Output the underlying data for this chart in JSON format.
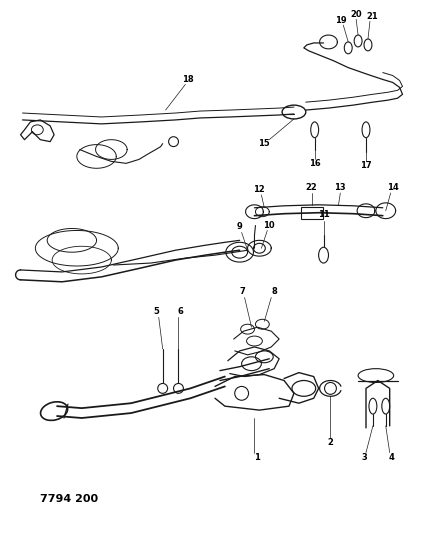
{
  "title": "7794 200",
  "background_color": "#ffffff",
  "line_color": "#1a1a1a",
  "figsize": [
    4.28,
    5.33
  ],
  "dpi": 100
}
